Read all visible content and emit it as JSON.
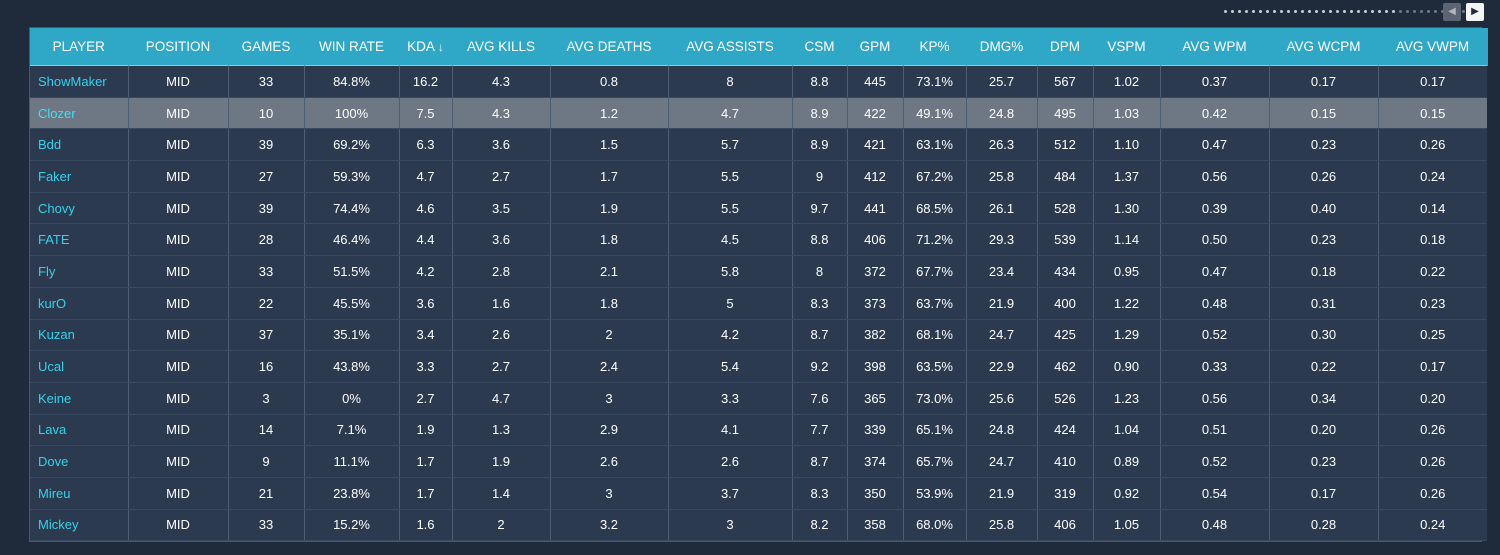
{
  "pagination": {
    "prev_icon": "◀",
    "next_icon": "▶"
  },
  "table": {
    "columns": [
      "PLAYER",
      "POSITION",
      "GAMES",
      "WIN RATE",
      "KDA",
      "AVG KILLS",
      "AVG DEATHS",
      "AVG ASSISTS",
      "CSM",
      "GPM",
      "KP%",
      "DMG%",
      "DPM",
      "VSPM",
      "AVG WPM",
      "AVG WCPM",
      "AVG VWPM"
    ],
    "sort_indicator": "↓",
    "rows": [
      [
        "ShowMaker",
        "MID",
        "33",
        "84.8%",
        "16.2",
        "4.3",
        "0.8",
        "8",
        "8.8",
        "445",
        "73.1%",
        "25.7",
        "567",
        "1.02",
        "0.37",
        "0.17",
        "0.17"
      ],
      [
        "Clozer",
        "MID",
        "10",
        "100%",
        "7.5",
        "4.3",
        "1.2",
        "4.7",
        "8.9",
        "422",
        "49.1%",
        "24.8",
        "495",
        "1.03",
        "0.42",
        "0.15",
        "0.15"
      ],
      [
        "Bdd",
        "MID",
        "39",
        "69.2%",
        "6.3",
        "3.6",
        "1.5",
        "5.7",
        "8.9",
        "421",
        "63.1%",
        "26.3",
        "512",
        "1.10",
        "0.47",
        "0.23",
        "0.26"
      ],
      [
        "Faker",
        "MID",
        "27",
        "59.3%",
        "4.7",
        "2.7",
        "1.7",
        "5.5",
        "9",
        "412",
        "67.2%",
        "25.8",
        "484",
        "1.37",
        "0.56",
        "0.26",
        "0.24"
      ],
      [
        "Chovy",
        "MID",
        "39",
        "74.4%",
        "4.6",
        "3.5",
        "1.9",
        "5.5",
        "9.7",
        "441",
        "68.5%",
        "26.1",
        "528",
        "1.30",
        "0.39",
        "0.40",
        "0.14"
      ],
      [
        "FATE",
        "MID",
        "28",
        "46.4%",
        "4.4",
        "3.6",
        "1.8",
        "4.5",
        "8.8",
        "406",
        "71.2%",
        "29.3",
        "539",
        "1.14",
        "0.50",
        "0.23",
        "0.18"
      ],
      [
        "Fly",
        "MID",
        "33",
        "51.5%",
        "4.2",
        "2.8",
        "2.1",
        "5.8",
        "8",
        "372",
        "67.7%",
        "23.4",
        "434",
        "0.95",
        "0.47",
        "0.18",
        "0.22"
      ],
      [
        "kurO",
        "MID",
        "22",
        "45.5%",
        "3.6",
        "1.6",
        "1.8",
        "5",
        "8.3",
        "373",
        "63.7%",
        "21.9",
        "400",
        "1.22",
        "0.48",
        "0.31",
        "0.23"
      ],
      [
        "Kuzan",
        "MID",
        "37",
        "35.1%",
        "3.4",
        "2.6",
        "2",
        "4.2",
        "8.7",
        "382",
        "68.1%",
        "24.7",
        "425",
        "1.29",
        "0.52",
        "0.30",
        "0.25"
      ],
      [
        "Ucal",
        "MID",
        "16",
        "43.8%",
        "3.3",
        "2.7",
        "2.4",
        "5.4",
        "9.2",
        "398",
        "63.5%",
        "22.9",
        "462",
        "0.90",
        "0.33",
        "0.22",
        "0.17"
      ],
      [
        "Keine",
        "MID",
        "3",
        "0%",
        "2.7",
        "4.7",
        "3",
        "3.3",
        "7.6",
        "365",
        "73.0%",
        "25.6",
        "526",
        "1.23",
        "0.56",
        "0.34",
        "0.20"
      ],
      [
        "Lava",
        "MID",
        "14",
        "7.1%",
        "1.9",
        "1.3",
        "2.9",
        "4.1",
        "7.7",
        "339",
        "65.1%",
        "24.8",
        "424",
        "1.04",
        "0.51",
        "0.20",
        "0.26"
      ],
      [
        "Dove",
        "MID",
        "9",
        "11.1%",
        "1.7",
        "1.9",
        "2.6",
        "2.6",
        "8.7",
        "374",
        "65.7%",
        "24.7",
        "410",
        "0.89",
        "0.52",
        "0.23",
        "0.26"
      ],
      [
        "Mireu",
        "MID",
        "21",
        "23.8%",
        "1.7",
        "1.4",
        "3",
        "3.7",
        "8.3",
        "350",
        "53.9%",
        "21.9",
        "319",
        "0.92",
        "0.54",
        "0.17",
        "0.26"
      ],
      [
        "Mickey",
        "MID",
        "33",
        "15.2%",
        "1.6",
        "2",
        "3.2",
        "3",
        "8.2",
        "358",
        "68.0%",
        "25.8",
        "406",
        "1.05",
        "0.48",
        "0.28",
        "0.24"
      ]
    ],
    "selected_row": 1
  },
  "colors": {
    "header_bg": "#2fa8c8",
    "row_bg": "#2b3a4e",
    "selected_row_bg": "#6e7784",
    "player_link": "#36d2ec",
    "page_bg": "#1f2b3a"
  }
}
